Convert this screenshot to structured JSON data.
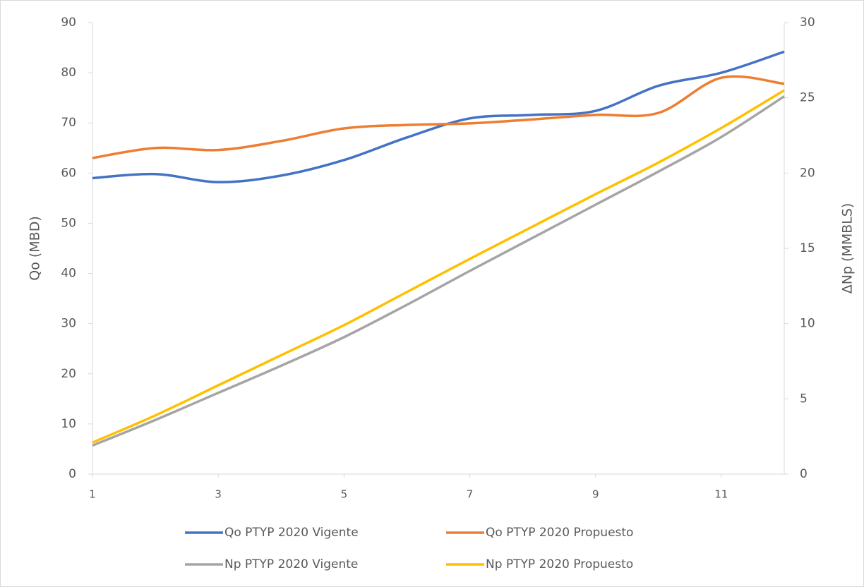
{
  "chart_data": {
    "type": "line",
    "x": [
      1,
      2,
      3,
      4,
      5,
      6,
      7,
      8,
      9,
      10,
      11,
      12
    ],
    "xlim": [
      1,
      12
    ],
    "xticks": [
      1,
      3,
      5,
      7,
      9,
      11
    ],
    "ylim": [
      0,
      90
    ],
    "yticks": [
      0,
      10,
      20,
      30,
      40,
      50,
      60,
      70,
      80,
      90
    ],
    "y2lim": [
      0,
      30
    ],
    "y2ticks": [
      0,
      5,
      10,
      15,
      20,
      25,
      30
    ],
    "ylabel": "Qo (MBD)",
    "y2label": "ΔNp (MMBLS)",
    "legend": "bottom",
    "series": [
      {
        "name": "Qo PTYP 2020 Vigente",
        "color": "#4472c4",
        "values": [
          59,
          59.8,
          58.2,
          59.5,
          62.6,
          67.1,
          70.9,
          71.6,
          72.4,
          77.4,
          80.0,
          84.2
        ]
      },
      {
        "name": "Qo PTYP 2020 Propuesto",
        "color": "#ed7d31",
        "values": [
          63.0,
          65.0,
          64.6,
          66.4,
          68.9,
          69.6,
          69.9,
          70.7,
          71.6,
          72.0,
          79.0,
          77.8
        ]
      },
      {
        "name": "Np PTYP 2020 Vigente",
        "color": "#a5a5a5",
        "axis": "y2",
        "values": [
          1.9,
          3.6,
          5.4,
          7.2,
          9.1,
          11.25,
          13.5,
          15.7,
          17.9,
          20.1,
          22.4,
          25.1
        ]
      },
      {
        "name": "Np PTYP 2020 Propuesto",
        "color": "#ffc000",
        "axis": "y2",
        "values": [
          2.1,
          3.9,
          5.9,
          7.9,
          9.9,
          12.1,
          14.3,
          16.45,
          18.6,
          20.7,
          23.0,
          25.5
        ]
      }
    ]
  }
}
